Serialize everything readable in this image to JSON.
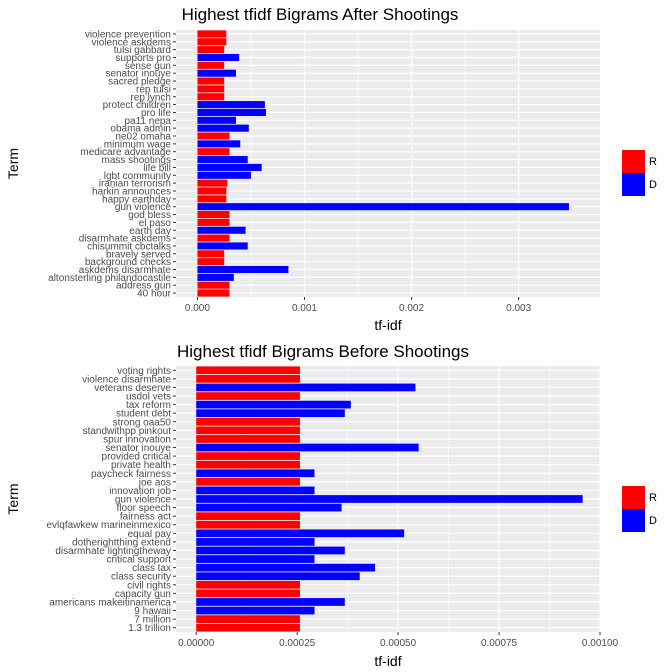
{
  "colors": {
    "R": "#ff0000",
    "D": "#0000ff",
    "panel_bg": "#ebebeb",
    "grid": "#ffffff"
  },
  "chart_data": [
    {
      "type": "bar",
      "orientation": "horizontal",
      "title": "Highest tfidf Bigrams After Shootings",
      "xlabel": "tf-idf",
      "ylabel": "Term",
      "xlim": [
        -0.0002,
        0.00376
      ],
      "xticks": [
        0,
        0.001,
        0.002,
        0.003
      ],
      "xtick_labels": [
        "0.000",
        "0.001",
        "0.002",
        "0.003"
      ],
      "grid": true,
      "legend": {
        "position": "right",
        "entries": [
          "R",
          "D"
        ]
      },
      "categories": [
        "violence prevention",
        "violence askdems",
        "tulsi gabbard",
        "supports pro",
        "sense gun",
        "senator inouye",
        "sacred pledge",
        "rep tulsi",
        "rep lynch",
        "protect children",
        "pro life",
        "pa11 nepa",
        "obama admin",
        "ne02 omaha",
        "minimum wage",
        "medicare advantage",
        "mass shootings",
        "life bill",
        "lgbt community",
        "iranian terrorism",
        "harkin announces",
        "happy earthday",
        "gun violence",
        "god bless",
        "el paso",
        "earth day",
        "disarmhate askdems",
        "chisummit cbctalks",
        "bravely served",
        "background checks",
        "askdems disarmhate",
        "altonsterling philandocastile",
        "address gun",
        "40 hour"
      ],
      "values": [
        0.00027,
        0.00027,
        0.00025,
        0.00039,
        0.00025,
        0.00036,
        0.00025,
        0.00025,
        0.00025,
        0.00063,
        0.00064,
        0.00036,
        0.00048,
        0.0003,
        0.0004,
        0.0003,
        0.00047,
        0.0006,
        0.0005,
        0.00028,
        0.00027,
        0.00027,
        0.00347,
        0.0003,
        0.0003,
        0.00045,
        0.0003,
        0.00047,
        0.00025,
        0.00025,
        0.00085,
        0.00034,
        0.0003,
        0.0003
      ],
      "party": [
        "R",
        "R",
        "R",
        "D",
        "R",
        "D",
        "R",
        "R",
        "R",
        "D",
        "D",
        "D",
        "D",
        "R",
        "D",
        "R",
        "D",
        "D",
        "D",
        "R",
        "R",
        "R",
        "D",
        "R",
        "R",
        "D",
        "R",
        "D",
        "R",
        "R",
        "D",
        "D",
        "R",
        "R"
      ]
    },
    {
      "type": "bar",
      "orientation": "horizontal",
      "title": "Highest tfidf Bigrams Before Shootings",
      "xlabel": "tf-idf",
      "ylabel": "Term",
      "xlim": [
        -5e-05,
        0.001
      ],
      "xticks": [
        0,
        0.00025,
        0.0005,
        0.00075,
        0.001
      ],
      "xtick_labels": [
        "0.00000",
        "0.00025",
        "0.00050",
        "0.00075",
        "0.00100"
      ],
      "grid": true,
      "legend": {
        "position": "right",
        "entries": [
          "R",
          "D"
        ]
      },
      "categories": [
        "voting rights",
        "violence disarmhate",
        "veterans deserve",
        "usdol vets",
        "tax reform",
        "student debt",
        "strong oaa50",
        "standwithpp pinkout",
        "spur innovation",
        "senator inouye",
        "provided critical",
        "private health",
        "paycheck fairness",
        "joe aos",
        "innovation job",
        "gun violence",
        "floor speech",
        "fairness act",
        "evlqfawkew marineinmexico",
        "equal pay",
        "dotherightthing extend",
        "disarmhate lightingtheway",
        "critical support",
        "class tax",
        "class security",
        "civil rights",
        "capacity gun",
        "americans makeitinamerica",
        "9 hawaii",
        "7 million",
        "1.3 trillion"
      ],
      "values": [
        0.000257,
        0.000257,
        0.000543,
        0.000257,
        0.000383,
        0.000368,
        0.000257,
        0.000257,
        0.000257,
        0.000551,
        0.000257,
        0.000257,
        0.000293,
        0.000257,
        0.000293,
        0.000957,
        0.00036,
        0.000257,
        0.000257,
        0.000515,
        0.000293,
        0.000368,
        0.000293,
        0.000443,
        0.000405,
        0.000257,
        0.000257,
        0.000368,
        0.000293,
        0.000257,
        0.000257
      ],
      "party": [
        "R",
        "R",
        "D",
        "R",
        "D",
        "D",
        "R",
        "R",
        "R",
        "D",
        "R",
        "R",
        "D",
        "R",
        "D",
        "D",
        "D",
        "R",
        "R",
        "D",
        "D",
        "D",
        "D",
        "D",
        "D",
        "R",
        "R",
        "D",
        "D",
        "R",
        "R"
      ]
    }
  ]
}
